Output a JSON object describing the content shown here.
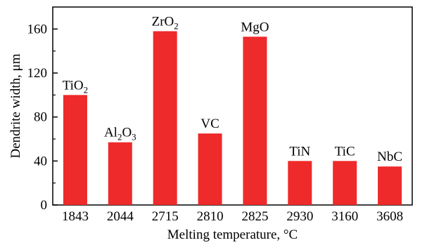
{
  "chart_data": {
    "type": "bar",
    "xlabel": "Melting temperature, °C",
    "ylabel": "Dendrite width, μm",
    "ylim": [
      0,
      180
    ],
    "yticks": [
      0,
      40,
      80,
      120,
      160
    ],
    "categories": [
      "1843",
      "2044",
      "2715",
      "2810",
      "2825",
      "2930",
      "3160",
      "3608"
    ],
    "values": [
      100,
      57,
      158,
      65,
      153,
      40,
      40,
      35
    ],
    "bar_labels": [
      {
        "parts": [
          {
            "t": "TiO"
          },
          {
            "t": "2",
            "sub": true
          }
        ]
      },
      {
        "parts": [
          {
            "t": "Al"
          },
          {
            "t": "2",
            "sub": true
          },
          {
            "t": "O"
          },
          {
            "t": "3",
            "sub": true
          }
        ]
      },
      {
        "parts": [
          {
            "t": "ZrO"
          },
          {
            "t": "2",
            "sub": true
          }
        ]
      },
      {
        "parts": [
          {
            "t": "VC"
          }
        ]
      },
      {
        "parts": [
          {
            "t": "MgO"
          }
        ]
      },
      {
        "parts": [
          {
            "t": "TiN"
          }
        ]
      },
      {
        "parts": [
          {
            "t": "TiC"
          }
        ]
      },
      {
        "parts": [
          {
            "t": "NbC"
          }
        ]
      }
    ],
    "bar_color": "#ee2a2a",
    "grid": false,
    "legend": "none"
  }
}
